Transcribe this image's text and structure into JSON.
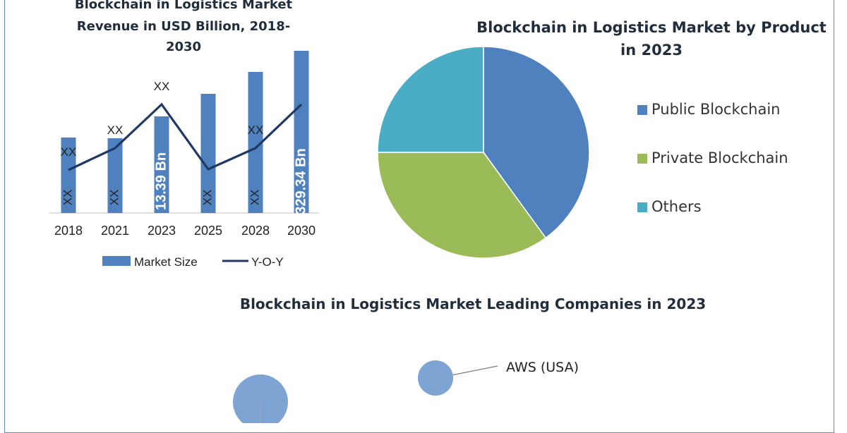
{
  "colors": {
    "frame": "#5b8fc3",
    "bar": "#4e81bd",
    "line": "#1f3864",
    "public": "#4e81bd",
    "private": "#9bbb59",
    "others": "#4bacc6",
    "bubble": "#7ea4d4"
  },
  "chart_data": [
    {
      "type": "bar",
      "title_lines": [
        "Blockchain in Logistics Market",
        "Revenue in USD Billion, 2018-",
        "2030"
      ],
      "categories": [
        "2018",
        "2021",
        "2023",
        "2025",
        "2028",
        "2030"
      ],
      "series": [
        {
          "name": "Market Size",
          "kind": "bar",
          "values": [
            107,
            106,
            137,
            169,
            200,
            230
          ],
          "labels": [
            "XX",
            "XX",
            "13.39 Bn",
            "XX",
            "XX",
            "329.34 Bn"
          ]
        },
        {
          "name": "Y-O-Y",
          "kind": "line",
          "values": [
            61,
            92,
            154,
            62,
            92,
            154
          ],
          "labels": [
            "XX",
            "XX",
            "XX",
            "",
            "XX",
            ""
          ]
        }
      ],
      "ylim": [
        0,
        230
      ],
      "legend": [
        "Market Size",
        "Y-O-Y"
      ],
      "legend_position": "bottom"
    },
    {
      "type": "pie",
      "title_lines": [
        "Blockchain in Logistics Market by Product",
        "in 2023"
      ],
      "slices": [
        {
          "label": "Public Blockchain",
          "value": 40
        },
        {
          "label": "Private Blockchain",
          "value": 35
        },
        {
          "label": "Others",
          "value": 25
        }
      ],
      "legend_position": "right"
    },
    {
      "type": "scatter",
      "title_lines": [
        "Blockchain in Logistics Market Leading Companies in 2023"
      ],
      "bubbles": [
        {
          "label": "AWS (USA)"
        },
        {
          "label": ""
        }
      ]
    }
  ]
}
